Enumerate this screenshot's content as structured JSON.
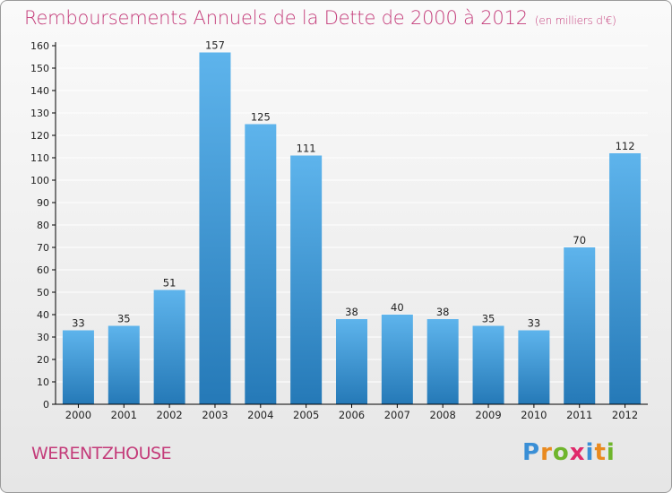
{
  "header": {
    "title": "Remboursements Annuels de la Dette de 2000 à 2012",
    "unit": "(en milliers d'€)"
  },
  "footer": {
    "town": "WERENTZHOUSE",
    "logo_letters": [
      "P",
      "r",
      "o",
      "x",
      "i",
      "t",
      "i"
    ],
    "logo_colors": [
      "#3a8fd6",
      "#e98a1f",
      "#6fb52c",
      "#e02a6b",
      "#3a8fd6",
      "#e98a1f",
      "#6fb52c"
    ]
  },
  "colors": {
    "title": "#c43c7a",
    "bar_light": "#5eb4ec",
    "bar_dark": "#2579b7",
    "axis": "#000000",
    "grid": "#ffffff"
  },
  "chart_data": {
    "type": "bar",
    "categories": [
      "2000",
      "2001",
      "2002",
      "2003",
      "2004",
      "2005",
      "2006",
      "2007",
      "2008",
      "2009",
      "2010",
      "2011",
      "2012"
    ],
    "values": [
      33,
      35,
      51,
      157,
      125,
      111,
      38,
      40,
      38,
      35,
      33,
      70,
      112
    ],
    "title": "Remboursements Annuels de la Dette de 2000 à 2012",
    "xlabel": "",
    "ylabel": "",
    "ylim": [
      0,
      160
    ],
    "yticks": [
      0,
      10,
      20,
      30,
      40,
      50,
      60,
      70,
      80,
      90,
      100,
      110,
      120,
      130,
      140,
      150,
      160
    ],
    "grid": true,
    "legend": "none"
  }
}
